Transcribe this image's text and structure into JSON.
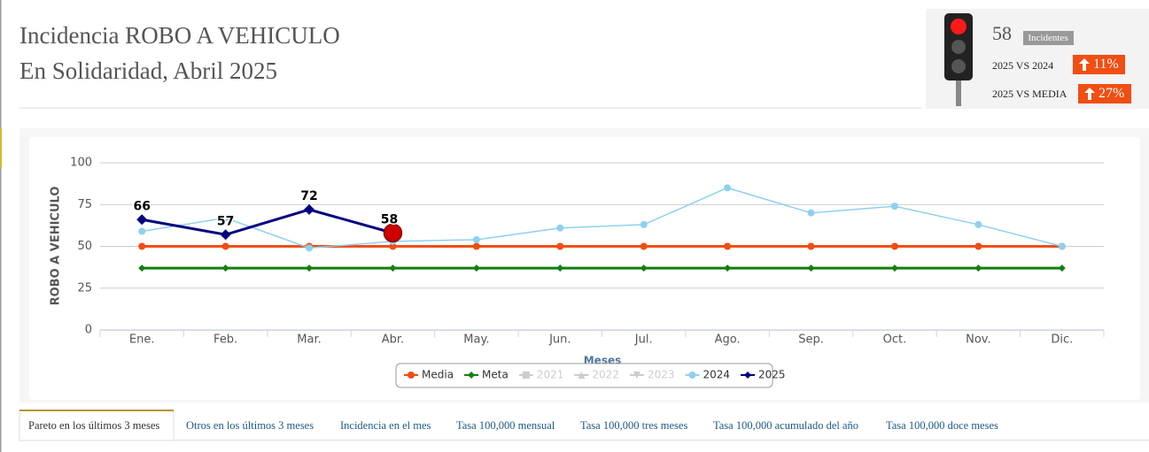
{
  "header": {
    "title": "Incidencia ROBO A VEHICULO",
    "subtitle": "En Solidaridad, Abril 2025"
  },
  "summary": {
    "count": "58",
    "count_label": "Incidentes",
    "comparisons": [
      {
        "label": "2025 VS 2024",
        "value": "11%"
      },
      {
        "label": "2025 VS MEDIA",
        "value": "27%"
      }
    ]
  },
  "chart_data": {
    "type": "line",
    "categories": [
      "Ene.",
      "Feb.",
      "Mar.",
      "Abr.",
      "May.",
      "Jun.",
      "Jul.",
      "Ago.",
      "Sep.",
      "Oct.",
      "Nov.",
      "Dic."
    ],
    "y_label": "ROBO A VEHICULO",
    "x_label": "Meses",
    "ylim": [
      0,
      100
    ],
    "yticks": [
      0,
      25,
      50,
      75,
      100
    ],
    "grid": true,
    "legend": "bottom",
    "series": [
      {
        "name": "Media",
        "color": "#f04e12",
        "marker": "circle",
        "visible": true,
        "values": [
          50,
          50,
          50,
          50,
          50,
          50,
          50,
          50,
          50,
          50,
          50,
          50
        ]
      },
      {
        "name": "Meta",
        "color": "#118011",
        "marker": "diamond",
        "visible": true,
        "values": [
          37,
          37,
          37,
          37,
          37,
          37,
          37,
          37,
          37,
          37,
          37,
          37
        ]
      },
      {
        "name": "2021",
        "color": "#cccccc",
        "marker": "square",
        "visible": false,
        "values": [
          null,
          null,
          null,
          null,
          null,
          null,
          null,
          null,
          null,
          null,
          null,
          null
        ]
      },
      {
        "name": "2022",
        "color": "#cccccc",
        "marker": "triangle",
        "visible": false,
        "values": [
          null,
          null,
          null,
          null,
          null,
          null,
          null,
          null,
          null,
          null,
          null,
          null
        ]
      },
      {
        "name": "2023",
        "color": "#cccccc",
        "marker": "triangle-down",
        "visible": false,
        "values": [
          null,
          null,
          null,
          null,
          null,
          null,
          null,
          null,
          null,
          null,
          null,
          null
        ]
      },
      {
        "name": "2024",
        "color": "#8fd0f0",
        "marker": "circle",
        "visible": true,
        "values": [
          59,
          67,
          49,
          53,
          54,
          61,
          63,
          85,
          70,
          74,
          63,
          50
        ]
      },
      {
        "name": "2025",
        "color": "#000080",
        "marker": "diamond",
        "visible": true,
        "data_labels": true,
        "values": [
          66,
          57,
          72,
          58,
          null,
          null,
          null,
          null,
          null,
          null,
          null,
          null
        ]
      }
    ]
  },
  "tabs": [
    "Pareto en los últimos 3 meses",
    "Otros en los últimos 3 meses",
    "Incidencia en el mes",
    "Tasa 100,000 mensual",
    "Tasa 100,000 tres meses",
    "Tasa 100,000 acumulado del año",
    "Tasa 100,000 doce meses"
  ]
}
